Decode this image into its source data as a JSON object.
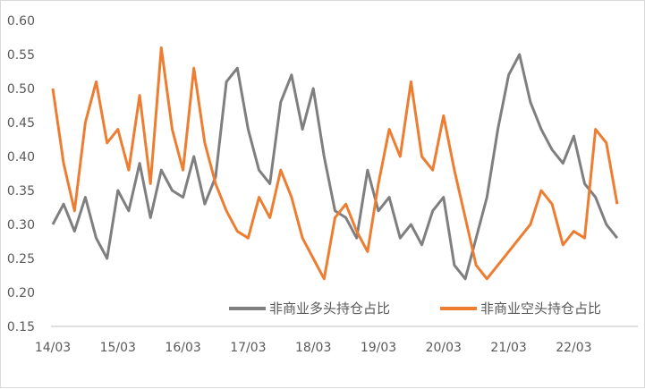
{
  "chart_data": {
    "type": "line",
    "title": "",
    "xlabel": "",
    "ylabel": "",
    "ylim": [
      0.15,
      0.6
    ],
    "y_ticks": [
      "0.15",
      "0.20",
      "0.25",
      "0.30",
      "0.35",
      "0.40",
      "0.45",
      "0.50",
      "0.55",
      "0.60"
    ],
    "x_ticks": [
      "14/03",
      "15/03",
      "16/03",
      "17/03",
      "18/03",
      "19/03",
      "20/03",
      "21/03",
      "22/03"
    ],
    "grid": false,
    "legend_position": "bottom-right",
    "x_start": "2014/03",
    "x_end": "2022/11",
    "series": [
      {
        "name": "非商业多头持仓占比",
        "color": "#7f7f7f",
        "x": [
          "14/03",
          "14/05",
          "14/07",
          "14/09",
          "14/11",
          "15/01",
          "15/03",
          "15/05",
          "15/07",
          "15/09",
          "15/11",
          "16/01",
          "16/03",
          "16/05",
          "16/07",
          "16/09",
          "16/11",
          "17/01",
          "17/03",
          "17/05",
          "17/07",
          "17/09",
          "17/11",
          "18/01",
          "18/03",
          "18/05",
          "18/07",
          "18/09",
          "18/11",
          "19/01",
          "19/03",
          "19/05",
          "19/07",
          "19/09",
          "19/11",
          "20/01",
          "20/03",
          "20/05",
          "20/07",
          "20/09",
          "20/11",
          "21/01",
          "21/03",
          "21/05",
          "21/07",
          "21/09",
          "21/11",
          "22/01",
          "22/03",
          "22/05",
          "22/07",
          "22/09",
          "22/11"
        ],
        "values": [
          0.3,
          0.33,
          0.29,
          0.34,
          0.28,
          0.25,
          0.35,
          0.32,
          0.39,
          0.31,
          0.38,
          0.35,
          0.34,
          0.4,
          0.33,
          0.37,
          0.51,
          0.53,
          0.44,
          0.38,
          0.36,
          0.48,
          0.52,
          0.44,
          0.5,
          0.4,
          0.32,
          0.31,
          0.28,
          0.38,
          0.32,
          0.34,
          0.28,
          0.3,
          0.27,
          0.32,
          0.34,
          0.24,
          0.22,
          0.28,
          0.34,
          0.44,
          0.52,
          0.55,
          0.48,
          0.44,
          0.41,
          0.39,
          0.43,
          0.36,
          0.34,
          0.3,
          0.28
        ]
      },
      {
        "name": "非商业空头持仓占比",
        "color": "#ed7d31",
        "x": [
          "14/03",
          "14/05",
          "14/07",
          "14/09",
          "14/11",
          "15/01",
          "15/03",
          "15/05",
          "15/07",
          "15/09",
          "15/11",
          "16/01",
          "16/03",
          "16/05",
          "16/07",
          "16/09",
          "16/11",
          "17/01",
          "17/03",
          "17/05",
          "17/07",
          "17/09",
          "17/11",
          "18/01",
          "18/03",
          "18/05",
          "18/07",
          "18/09",
          "18/11",
          "19/01",
          "19/03",
          "19/05",
          "19/07",
          "19/09",
          "19/11",
          "20/01",
          "20/03",
          "20/05",
          "20/07",
          "20/09",
          "20/11",
          "21/01",
          "21/03",
          "21/05",
          "21/07",
          "21/09",
          "21/11",
          "22/01",
          "22/03",
          "22/05",
          "22/07",
          "22/09",
          "22/11"
        ],
        "values": [
          0.5,
          0.39,
          0.32,
          0.45,
          0.51,
          0.42,
          0.44,
          0.38,
          0.49,
          0.36,
          0.56,
          0.44,
          0.38,
          0.53,
          0.42,
          0.36,
          0.32,
          0.29,
          0.28,
          0.34,
          0.31,
          0.38,
          0.34,
          0.28,
          0.25,
          0.22,
          0.31,
          0.33,
          0.29,
          0.26,
          0.36,
          0.44,
          0.4,
          0.51,
          0.4,
          0.38,
          0.46,
          0.38,
          0.31,
          0.24,
          0.22,
          0.24,
          0.26,
          0.28,
          0.3,
          0.35,
          0.33,
          0.27,
          0.29,
          0.28,
          0.44,
          0.42,
          0.33
        ]
      }
    ]
  }
}
